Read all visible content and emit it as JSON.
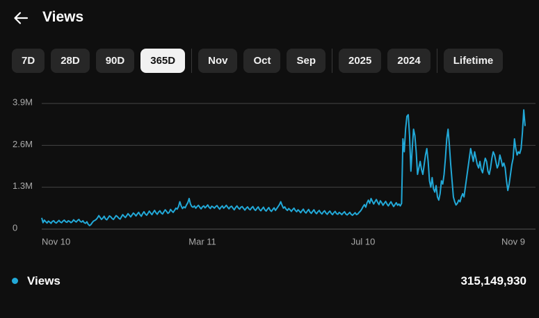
{
  "header": {
    "title": "Views"
  },
  "tab_groups": [
    [
      "7D",
      "28D",
      "90D",
      "365D"
    ],
    [
      "Nov",
      "Oct",
      "Sep"
    ],
    [
      "2025",
      "2024"
    ],
    [
      "Lifetime"
    ]
  ],
  "chart_data": {
    "type": "line",
    "categories": [
      "Nov 10",
      null,
      null,
      null,
      null,
      null,
      null,
      null,
      null,
      null,
      null,
      null,
      null,
      null,
      null,
      null,
      null,
      null,
      null,
      null,
      null,
      null,
      null,
      null,
      null,
      null,
      null,
      null,
      null,
      null,
      null,
      null,
      null,
      null,
      null,
      null,
      null,
      null,
      null,
      null,
      null,
      null,
      null,
      null,
      null,
      null,
      null,
      null,
      null,
      null,
      null,
      null,
      null,
      null,
      null,
      null,
      null,
      null,
      null,
      null,
      null,
      null,
      null,
      null,
      null,
      null,
      null,
      null,
      null,
      null,
      null,
      null,
      null,
      null,
      null,
      null,
      null,
      null,
      null,
      null,
      null,
      null,
      null,
      null,
      null,
      null,
      null,
      null,
      null,
      null,
      null,
      null,
      null,
      null,
      null,
      null,
      null,
      null,
      null,
      null,
      null,
      null,
      null,
      null,
      null,
      null,
      null,
      null,
      null,
      null,
      null,
      null,
      null,
      null,
      null,
      null,
      null,
      null,
      null,
      null,
      null,
      "Mar 11",
      null,
      null,
      null,
      null,
      null,
      null,
      null,
      null,
      null,
      null,
      null,
      null,
      null,
      null,
      null,
      null,
      null,
      null,
      null,
      null,
      null,
      null,
      null,
      null,
      null,
      null,
      null,
      null,
      null,
      null,
      null,
      null,
      null,
      null,
      null,
      null,
      null,
      null,
      null,
      null,
      null,
      null,
      null,
      null,
      null,
      null,
      null,
      null,
      null,
      null,
      null,
      null,
      null,
      null,
      null,
      null,
      null,
      null,
      null,
      null,
      null,
      null,
      null,
      null,
      null,
      null,
      null,
      null,
      null,
      null,
      null,
      null,
      null,
      null,
      null,
      null,
      null,
      null,
      null,
      null,
      null,
      null,
      null,
      null,
      null,
      null,
      null,
      null,
      null,
      null,
      null,
      null,
      null,
      null,
      null,
      null,
      null,
      null,
      null,
      null,
      null,
      null,
      null,
      null,
      null,
      null,
      null,
      null,
      null,
      null,
      null,
      null,
      null,
      null,
      null,
      null,
      null,
      null,
      null,
      null,
      "Jul 10",
      null,
      null,
      null,
      null,
      null,
      null,
      null,
      null,
      null,
      null,
      null,
      null,
      null,
      null,
      null,
      null,
      null,
      null,
      null,
      null,
      null,
      null,
      null,
      null,
      null,
      null,
      null,
      null,
      null,
      null,
      null,
      null,
      null,
      null,
      null,
      null,
      null,
      null,
      null,
      null,
      null,
      null,
      null,
      null,
      null,
      null,
      null,
      null,
      null,
      null,
      null,
      null,
      null,
      null,
      null,
      null,
      null,
      null,
      null,
      null,
      null,
      null,
      null,
      null,
      null,
      null,
      null,
      null,
      null,
      null,
      null,
      null,
      null,
      null,
      null,
      null,
      null,
      null,
      null,
      null,
      null,
      null,
      null,
      null,
      null,
      null,
      null,
      null,
      null,
      null,
      null,
      null,
      null,
      null,
      null,
      null,
      null,
      null,
      null,
      null,
      null,
      null,
      null,
      null,
      null,
      null,
      null,
      null,
      null,
      null,
      null,
      null,
      null,
      null,
      null,
      null,
      null,
      null,
      null,
      null,
      null,
      "Nov 9"
    ],
    "series": [
      {
        "name": "Views",
        "color": "#22a9d8",
        "values": [
          350000,
          200000,
          280000,
          230000,
          190000,
          250000,
          220000,
          180000,
          240000,
          260000,
          210000,
          190000,
          230000,
          270000,
          220000,
          200000,
          250000,
          280000,
          230000,
          210000,
          260000,
          240000,
          200000,
          230000,
          290000,
          250000,
          220000,
          270000,
          300000,
          240000,
          220000,
          260000,
          200000,
          180000,
          230000,
          150000,
          110000,
          140000,
          200000,
          250000,
          270000,
          300000,
          350000,
          420000,
          360000,
          300000,
          340000,
          400000,
          320000,
          290000,
          350000,
          410000,
          380000,
          330000,
          300000,
          360000,
          420000,
          390000,
          340000,
          310000,
          380000,
          450000,
          400000,
          360000,
          420000,
          480000,
          430000,
          380000,
          440000,
          500000,
          460000,
          410000,
          470000,
          520000,
          450000,
          400000,
          480000,
          540000,
          470000,
          430000,
          490000,
          560000,
          500000,
          450000,
          520000,
          580000,
          510000,
          460000,
          530000,
          570000,
          500000,
          470000,
          540000,
          600000,
          550000,
          490000,
          520000,
          610000,
          560000,
          520000,
          580000,
          650000,
          620000,
          700000,
          850000,
          720000,
          640000,
          690000,
          660000,
          750000,
          820000,
          950000,
          780000,
          700000,
          680000,
          720000,
          650000,
          700000,
          740000,
          680000,
          630000,
          690000,
          720000,
          660000,
          700000,
          750000,
          680000,
          640000,
          710000,
          690000,
          650000,
          700000,
          730000,
          670000,
          620000,
          680000,
          720000,
          650000,
          690000,
          740000,
          680000,
          630000,
          690000,
          710000,
          650000,
          600000,
          670000,
          720000,
          660000,
          620000,
          680000,
          700000,
          640000,
          590000,
          650000,
          690000,
          630000,
          600000,
          660000,
          700000,
          620000,
          580000,
          640000,
          690000,
          610000,
          570000,
          630000,
          680000,
          600000,
          560000,
          620000,
          670000,
          590000,
          550000,
          610000,
          660000,
          580000,
          640000,
          700000,
          760000,
          850000,
          740000,
          650000,
          690000,
          620000,
          580000,
          640000,
          600000,
          550000,
          610000,
          650000,
          580000,
          540000,
          600000,
          560000,
          510000,
          570000,
          620000,
          540000,
          500000,
          560000,
          610000,
          530000,
          490000,
          550000,
          600000,
          520000,
          480000,
          540000,
          580000,
          510000,
          470000,
          530000,
          570000,
          500000,
          460000,
          520000,
          560000,
          490000,
          450000,
          510000,
          550000,
          480000,
          460000,
          520000,
          490000,
          450000,
          500000,
          540000,
          470000,
          440000,
          480000,
          520000,
          460000,
          430000,
          470000,
          510000,
          450000,
          470000,
          520000,
          560000,
          620000,
          700000,
          760000,
          680000,
          820000,
          900000,
          800000,
          950000,
          860000,
          780000,
          850000,
          920000,
          830000,
          760000,
          880000,
          820000,
          740000,
          800000,
          860000,
          780000,
          720000,
          790000,
          850000,
          770000,
          700000,
          760000,
          820000,
          740000,
          780000,
          720000,
          800000,
          2800000,
          2400000,
          3100000,
          3500000,
          3550000,
          2900000,
          1800000,
          2500000,
          3100000,
          2900000,
          2400000,
          1700000,
          1900000,
          2100000,
          1850000,
          1700000,
          2000000,
          2300000,
          2500000,
          2100000,
          1500000,
          1300000,
          1600000,
          1250000,
          1150000,
          1350000,
          1000000,
          900000,
          1100000,
          1500000,
          1400000,
          1700000,
          2200000,
          2800000,
          3100000,
          2600000,
          2000000,
          1500000,
          1000000,
          850000,
          750000,
          800000,
          900000,
          850000,
          1000000,
          1100000,
          1000000,
          1300000,
          1600000,
          1900000,
          2200000,
          2500000,
          2300000,
          2100000,
          2400000,
          2200000,
          2000000,
          1900000,
          2100000,
          1850000,
          1750000,
          2000000,
          2200000,
          2100000,
          1800000,
          1700000,
          1900000,
          2200000,
          2400000,
          2300000,
          2100000,
          1900000,
          2000000,
          2300000,
          2150000,
          1950000,
          2050000,
          1900000,
          1500000,
          1200000,
          1400000,
          1700000,
          2000000,
          2200000,
          2800000,
          2500000,
          2300000,
          2400000,
          2350000,
          2500000,
          3000000,
          3700000,
          3200000
        ]
      }
    ],
    "ylim": [
      0,
      3900000
    ],
    "yticks": [
      0,
      {
        "value": 1300000,
        "label": "1.3M"
      },
      {
        "value": 2600000,
        "label": "2.6M"
      },
      {
        "value": 3900000,
        "label": "3.9M"
      }
    ],
    "grid": true
  },
  "summary": {
    "total": "315,149,930"
  }
}
